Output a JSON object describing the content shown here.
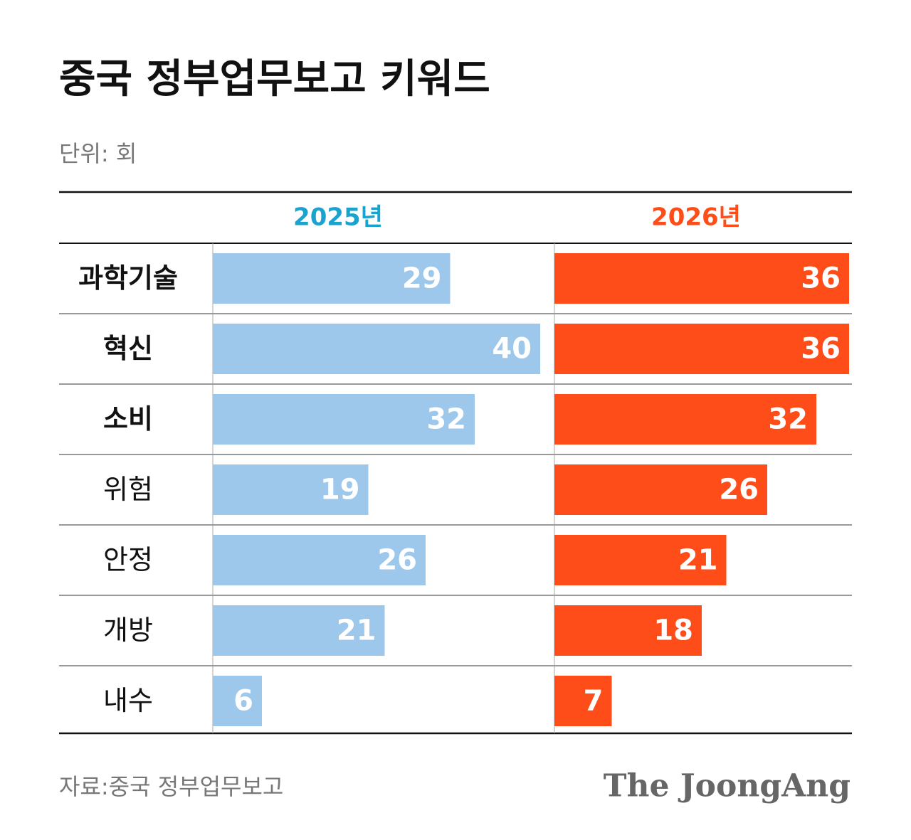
{
  "chart_data": {
    "type": "bar",
    "title": "중국 정부업무보고 키워드",
    "subtitle": "단위: 회",
    "categories": [
      "과학기술",
      "혁신",
      "소비",
      "위험",
      "안정",
      "개방",
      "내수"
    ],
    "series": [
      {
        "name": "2025년",
        "color": "#9dc8ec",
        "label_color": "#1aa3cf",
        "values": [
          29,
          40,
          32,
          19,
          26,
          21,
          6
        ]
      },
      {
        "name": "2026년",
        "color": "#ff4d1a",
        "label_color": "#ff4d1a",
        "values": [
          36,
          36,
          32,
          26,
          21,
          18,
          7
        ]
      }
    ],
    "xlim": [
      0,
      40
    ],
    "source": "자료:중국 정부업무보고",
    "brand": "The JoongAng"
  }
}
